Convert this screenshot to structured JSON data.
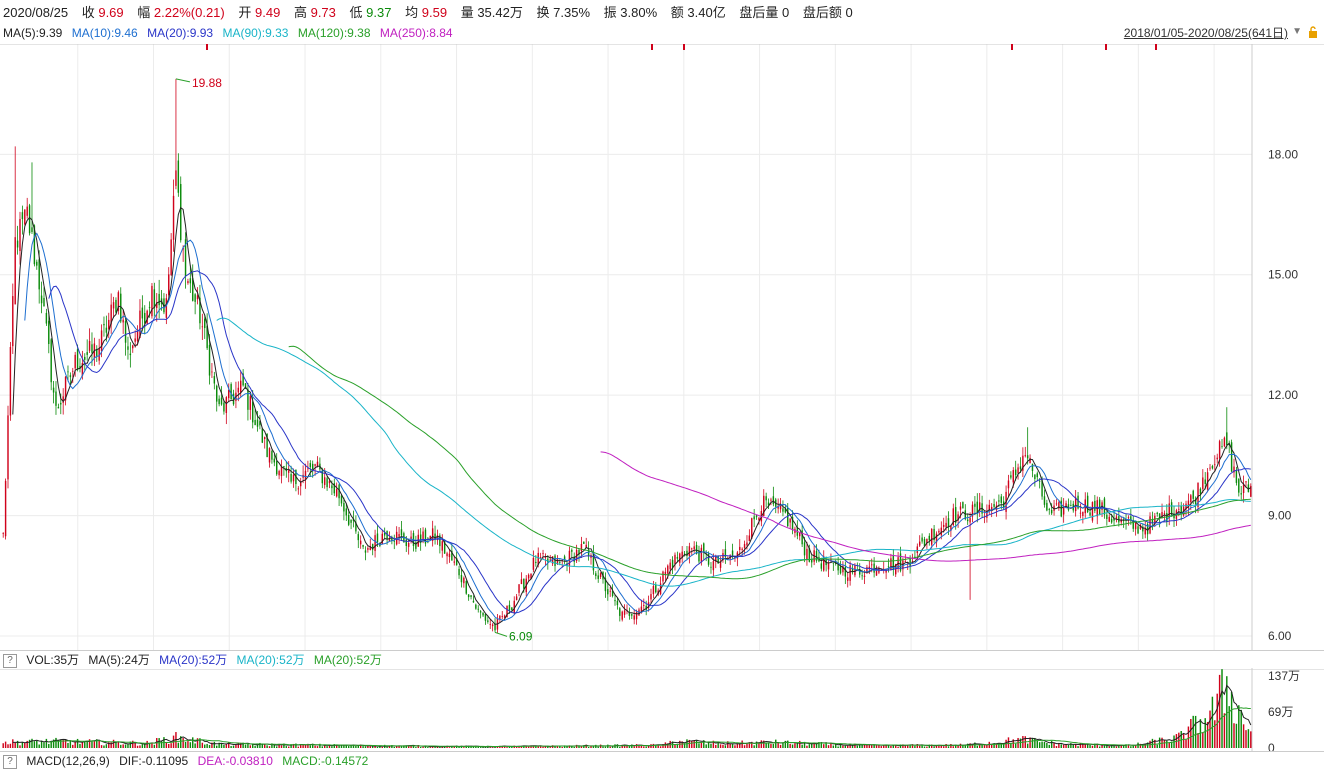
{
  "quote": {
    "date": "2020/08/25",
    "close_label": "收",
    "close": "9.69",
    "change_label": "幅",
    "change": "2.22%(0.21)",
    "open_label": "开",
    "open": "9.49",
    "high_label": "高",
    "high": "9.73",
    "low_label": "低",
    "low": "9.37",
    "avg_label": "均",
    "avg": "9.59",
    "vol_label": "量",
    "vol": "35.42万",
    "turnover_label": "换",
    "turnover": "7.35%",
    "amp_label": "振",
    "amp": "3.80%",
    "amount_label": "额",
    "amount": "3.40亿",
    "after_vol": "盘后量 0",
    "after_amt": "盘后额 0"
  },
  "ma_legend": {
    "ma5": "MA(5):9.39",
    "ma10": "MA(10):9.46",
    "ma20": "MA(20):9.93",
    "ma90": "MA(90):9.33",
    "ma120": "MA(120):9.38",
    "ma250": "MA(250):8.84"
  },
  "range_text": "2018/01/05-2020/08/25(641日)",
  "vol_legend": {
    "vol": "VOL:35万",
    "ma5": "MA(5):24万",
    "ma20a": "MA(20):52万",
    "ma20b": "MA(20):52万",
    "ma20c": "MA(20):52万"
  },
  "macd_legend": {
    "name": "MACD(12,26,9)",
    "dif": "DIF:-0.11095",
    "dea": "DEA:-0.03810",
    "macd": "MACD:-0.14572"
  },
  "colors": {
    "up": "#d0021b",
    "down": "#0a8a0a",
    "ma5": "#222222",
    "ma10": "#1e6fd0",
    "ma20": "#2a35c8",
    "ma90": "#19b4c8",
    "ma120": "#2aa02a",
    "ma250": "#c020c0"
  },
  "chart_data": {
    "type": "candlestick",
    "price_axis": {
      "ylim": [
        5.8,
        20.5
      ],
      "ticks": [
        "18.00",
        "15.00",
        "12.00",
        "9.00",
        "6.00"
      ],
      "tick_values": [
        18,
        15,
        12,
        9,
        6
      ]
    },
    "annotations": {
      "high": "19.88",
      "low": "6.09"
    },
    "anchors": [
      {
        "i": 0,
        "p": 8.5
      },
      {
        "i": 5,
        "p": 15.8
      },
      {
        "i": 10,
        "p": 16.5
      },
      {
        "i": 16,
        "p": 14.5
      },
      {
        "i": 22,
        "p": 11.6
      },
      {
        "i": 30,
        "p": 12.8
      },
      {
        "i": 40,
        "p": 13.2
      },
      {
        "i": 48,
        "p": 14.5
      },
      {
        "i": 52,
        "p": 13.0
      },
      {
        "i": 62,
        "p": 14.6
      },
      {
        "i": 68,
        "p": 14.2
      },
      {
        "i": 72,
        "p": 17.5
      },
      {
        "i": 76,
        "p": 15.0
      },
      {
        "i": 82,
        "p": 14.0
      },
      {
        "i": 90,
        "p": 11.6
      },
      {
        "i": 100,
        "p": 12.2
      },
      {
        "i": 110,
        "p": 10.6
      },
      {
        "i": 120,
        "p": 9.8
      },
      {
        "i": 130,
        "p": 10.2
      },
      {
        "i": 140,
        "p": 9.5
      },
      {
        "i": 150,
        "p": 8.1
      },
      {
        "i": 160,
        "p": 8.6
      },
      {
        "i": 170,
        "p": 8.3
      },
      {
        "i": 180,
        "p": 8.5
      },
      {
        "i": 190,
        "p": 7.6
      },
      {
        "i": 198,
        "p": 6.6
      },
      {
        "i": 205,
        "p": 6.2
      },
      {
        "i": 212,
        "p": 6.8
      },
      {
        "i": 222,
        "p": 7.9
      },
      {
        "i": 232,
        "p": 7.8
      },
      {
        "i": 242,
        "p": 8.2
      },
      {
        "i": 250,
        "p": 7.3
      },
      {
        "i": 258,
        "p": 6.5
      },
      {
        "i": 268,
        "p": 6.8
      },
      {
        "i": 278,
        "p": 7.8
      },
      {
        "i": 286,
        "p": 8.2
      },
      {
        "i": 296,
        "p": 7.8
      },
      {
        "i": 306,
        "p": 8.0
      },
      {
        "i": 316,
        "p": 9.3
      },
      {
        "i": 326,
        "p": 9.0
      },
      {
        "i": 336,
        "p": 8.0
      },
      {
        "i": 346,
        "p": 7.7
      },
      {
        "i": 356,
        "p": 7.6
      },
      {
        "i": 366,
        "p": 7.8
      },
      {
        "i": 376,
        "p": 7.8
      },
      {
        "i": 386,
        "p": 8.5
      },
      {
        "i": 396,
        "p": 9.0
      },
      {
        "i": 406,
        "p": 9.1
      },
      {
        "i": 416,
        "p": 9.3
      },
      {
        "i": 426,
        "p": 10.6
      },
      {
        "i": 436,
        "p": 9.0
      },
      {
        "i": 446,
        "p": 9.3
      },
      {
        "i": 456,
        "p": 9.2
      },
      {
        "i": 466,
        "p": 8.8
      },
      {
        "i": 476,
        "p": 8.7
      },
      {
        "i": 486,
        "p": 9.1
      },
      {
        "i": 496,
        "p": 9.4
      },
      {
        "i": 504,
        "p": 10.4
      },
      {
        "i": 510,
        "p": 10.8
      },
      {
        "i": 515,
        "p": 9.6
      },
      {
        "i": 520,
        "p": 9.69
      }
    ],
    "spikes": [
      {
        "i": 72,
        "high": 19.88
      },
      {
        "i": 5,
        "high": 18.2
      },
      {
        "i": 12,
        "high": 17.8
      },
      {
        "i": 427,
        "high": 11.2
      },
      {
        "i": 510,
        "high": 11.7
      },
      {
        "i": 205,
        "low": 6.09
      },
      {
        "i": 403,
        "low": 6.9
      }
    ],
    "volume_axis": {
      "ylim": [
        0,
        145
      ],
      "ticks": [
        "137万",
        "69万",
        "0"
      ],
      "tick_values": [
        137,
        69,
        0
      ]
    },
    "volume_anchors": [
      {
        "i": 0,
        "v": 12
      },
      {
        "i": 20,
        "v": 14
      },
      {
        "i": 60,
        "v": 10
      },
      {
        "i": 72,
        "v": 22
      },
      {
        "i": 90,
        "v": 8
      },
      {
        "i": 150,
        "v": 5
      },
      {
        "i": 200,
        "v": 3
      },
      {
        "i": 230,
        "v": 4
      },
      {
        "i": 275,
        "v": 6
      },
      {
        "i": 280,
        "v": 15
      },
      {
        "i": 300,
        "v": 9
      },
      {
        "i": 320,
        "v": 12
      },
      {
        "i": 360,
        "v": 5
      },
      {
        "i": 400,
        "v": 6
      },
      {
        "i": 425,
        "v": 18
      },
      {
        "i": 440,
        "v": 8
      },
      {
        "i": 470,
        "v": 5
      },
      {
        "i": 490,
        "v": 22
      },
      {
        "i": 500,
        "v": 60
      },
      {
        "i": 505,
        "v": 80
      },
      {
        "i": 510,
        "v": 137
      },
      {
        "i": 515,
        "v": 75
      },
      {
        "i": 520,
        "v": 35
      }
    ]
  }
}
